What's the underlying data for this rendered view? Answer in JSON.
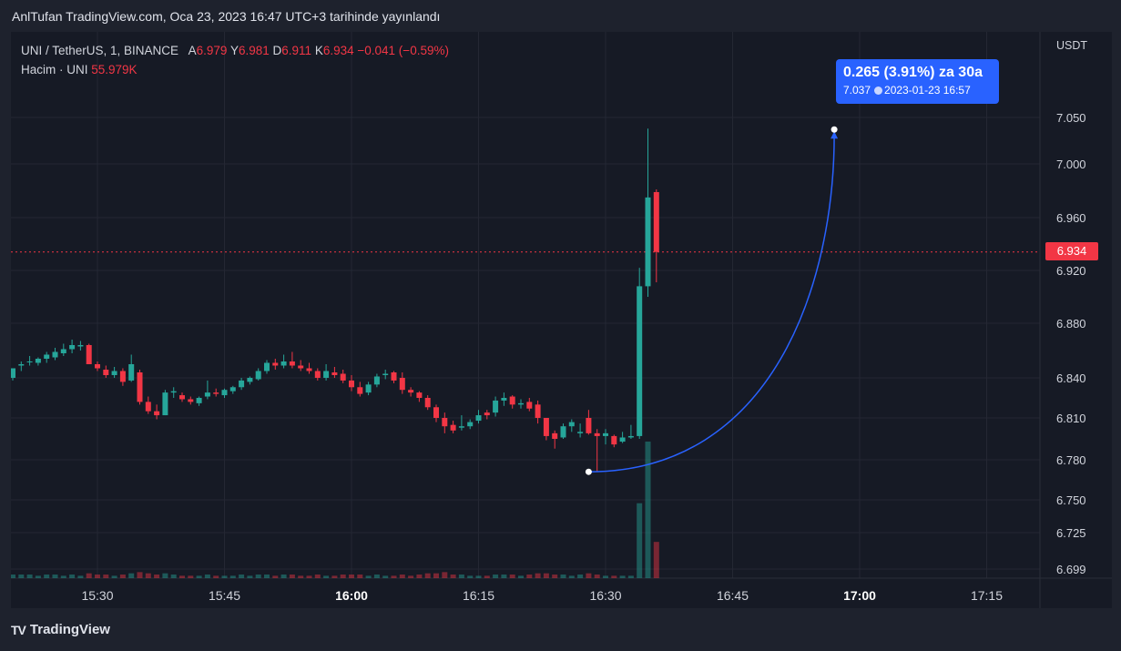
{
  "header": {
    "published": "AnlTufan TradingView.com, Oca 23, 2023 16:47 UTC+3 tarihinde yayınlandı"
  },
  "legend": {
    "symbol": "UNI / TetherUS, 1, BINANCE",
    "open_label": "A",
    "open": "6.979",
    "high_label": "Y",
    "high": "6.981",
    "low_label": "D",
    "low": "6.911",
    "close_label": "K",
    "close": "6.934",
    "change": "−0.041 (−0.59%)",
    "volume_label": "Hacim · UNI",
    "volume": "55.979K"
  },
  "axis": {
    "currency": "USDT"
  },
  "current_price": "6.934",
  "tooltip": {
    "main": "0.265 (3.91%) za 30a",
    "price": "7.037",
    "datetime": "2023-01-23  16:57"
  },
  "footer": {
    "logo_mark": "TV",
    "brand": "TradingView"
  },
  "colors": {
    "up": "#26a69a",
    "down": "#f23645",
    "accent": "#2962ff",
    "background": "#161a25"
  },
  "chart_data": {
    "type": "candlestick",
    "x_unit": "time",
    "y_ticks": [
      "7.050",
      "7.000",
      "6.960",
      "6.920",
      "6.880",
      "6.840",
      "6.810",
      "6.780",
      "6.750",
      "6.725",
      "6.699"
    ],
    "x_ticks": [
      {
        "label": "15:30",
        "bold": false
      },
      {
        "label": "15:45",
        "bold": false
      },
      {
        "label": "16:00",
        "bold": true
      },
      {
        "label": "16:15",
        "bold": false
      },
      {
        "label": "16:30",
        "bold": false
      },
      {
        "label": "16:45",
        "bold": false
      },
      {
        "label": "17:00",
        "bold": true
      },
      {
        "label": "17:15",
        "bold": false
      }
    ],
    "grid": true,
    "x_start": "15:20",
    "candles": [
      {
        "o": 6.84,
        "h": 6.847,
        "l": 6.838,
        "c": 6.847,
        "v": 3
      },
      {
        "o": 6.849,
        "h": 6.852,
        "l": 6.845,
        "c": 6.85,
        "v": 3
      },
      {
        "o": 6.852,
        "h": 6.856,
        "l": 6.849,
        "c": 6.852,
        "v": 3
      },
      {
        "o": 6.851,
        "h": 6.855,
        "l": 6.849,
        "c": 6.854,
        "v": 2
      },
      {
        "o": 6.854,
        "h": 6.859,
        "l": 6.851,
        "c": 6.857,
        "v": 3
      },
      {
        "o": 6.855,
        "h": 6.862,
        "l": 6.853,
        "c": 6.859,
        "v": 3
      },
      {
        "o": 6.858,
        "h": 6.865,
        "l": 6.856,
        "c": 6.861,
        "v": 2
      },
      {
        "o": 6.861,
        "h": 6.868,
        "l": 6.858,
        "c": 6.864,
        "v": 3
      },
      {
        "o": 6.863,
        "h": 6.867,
        "l": 6.86,
        "c": 6.864,
        "v": 2
      },
      {
        "o": 6.864,
        "h": 6.865,
        "l": 6.85,
        "c": 6.85,
        "v": 4
      },
      {
        "o": 6.85,
        "h": 6.852,
        "l": 6.845,
        "c": 6.847,
        "v": 3
      },
      {
        "o": 6.846,
        "h": 6.849,
        "l": 6.84,
        "c": 6.842,
        "v": 3
      },
      {
        "o": 6.842,
        "h": 6.848,
        "l": 6.84,
        "c": 6.845,
        "v": 2
      },
      {
        "o": 6.845,
        "h": 6.847,
        "l": 6.834,
        "c": 6.837,
        "v": 3
      },
      {
        "o": 6.838,
        "h": 6.857,
        "l": 6.837,
        "c": 6.85,
        "v": 4
      },
      {
        "o": 6.844,
        "h": 6.846,
        "l": 6.82,
        "c": 6.822,
        "v": 5
      },
      {
        "o": 6.822,
        "h": 6.826,
        "l": 6.813,
        "c": 6.815,
        "v": 4
      },
      {
        "o": 6.815,
        "h": 6.82,
        "l": 6.809,
        "c": 6.812,
        "v": 3
      },
      {
        "o": 6.812,
        "h": 6.831,
        "l": 6.812,
        "c": 6.829,
        "v": 4
      },
      {
        "o": 6.829,
        "h": 6.833,
        "l": 6.825,
        "c": 6.83,
        "v": 3
      },
      {
        "o": 6.827,
        "h": 6.829,
        "l": 6.822,
        "c": 6.824,
        "v": 2
      },
      {
        "o": 6.824,
        "h": 6.826,
        "l": 6.82,
        "c": 6.822,
        "v": 2
      },
      {
        "o": 6.821,
        "h": 6.826,
        "l": 6.819,
        "c": 6.825,
        "v": 2
      },
      {
        "o": 6.826,
        "h": 6.838,
        "l": 6.824,
        "c": 6.829,
        "v": 3
      },
      {
        "o": 6.829,
        "h": 6.832,
        "l": 6.826,
        "c": 6.828,
        "v": 2
      },
      {
        "o": 6.827,
        "h": 6.832,
        "l": 6.825,
        "c": 6.831,
        "v": 2
      },
      {
        "o": 6.83,
        "h": 6.834,
        "l": 6.828,
        "c": 6.833,
        "v": 2
      },
      {
        "o": 6.833,
        "h": 6.84,
        "l": 6.831,
        "c": 6.838,
        "v": 3
      },
      {
        "o": 6.837,
        "h": 6.841,
        "l": 6.835,
        "c": 6.84,
        "v": 2
      },
      {
        "o": 6.839,
        "h": 6.847,
        "l": 6.838,
        "c": 6.845,
        "v": 3
      },
      {
        "o": 6.845,
        "h": 6.853,
        "l": 6.843,
        "c": 6.851,
        "v": 3
      },
      {
        "o": 6.851,
        "h": 6.854,
        "l": 6.846,
        "c": 6.849,
        "v": 2
      },
      {
        "o": 6.849,
        "h": 6.857,
        "l": 6.847,
        "c": 6.852,
        "v": 3
      },
      {
        "o": 6.852,
        "h": 6.859,
        "l": 6.847,
        "c": 6.849,
        "v": 3
      },
      {
        "o": 6.849,
        "h": 6.853,
        "l": 6.845,
        "c": 6.847,
        "v": 2
      },
      {
        "o": 6.847,
        "h": 6.851,
        "l": 6.843,
        "c": 6.845,
        "v": 2
      },
      {
        "o": 6.845,
        "h": 6.847,
        "l": 6.838,
        "c": 6.84,
        "v": 3
      },
      {
        "o": 6.84,
        "h": 6.85,
        "l": 6.838,
        "c": 6.845,
        "v": 2
      },
      {
        "o": 6.844,
        "h": 6.848,
        "l": 6.84,
        "c": 6.842,
        "v": 2
      },
      {
        "o": 6.843,
        "h": 6.846,
        "l": 6.836,
        "c": 6.838,
        "v": 3
      },
      {
        "o": 6.838,
        "h": 6.842,
        "l": 6.83,
        "c": 6.833,
        "v": 3
      },
      {
        "o": 6.833,
        "h": 6.837,
        "l": 6.826,
        "c": 6.828,
        "v": 3
      },
      {
        "o": 6.829,
        "h": 6.837,
        "l": 6.827,
        "c": 6.835,
        "v": 2
      },
      {
        "o": 6.835,
        "h": 6.843,
        "l": 6.833,
        "c": 6.841,
        "v": 3
      },
      {
        "o": 6.842,
        "h": 6.846,
        "l": 6.839,
        "c": 6.843,
        "v": 2
      },
      {
        "o": 6.844,
        "h": 6.845,
        "l": 6.836,
        "c": 6.838,
        "v": 2
      },
      {
        "o": 6.84,
        "h": 6.844,
        "l": 6.828,
        "c": 6.831,
        "v": 3
      },
      {
        "o": 6.831,
        "h": 6.833,
        "l": 6.826,
        "c": 6.829,
        "v": 2
      },
      {
        "o": 6.829,
        "h": 6.83,
        "l": 6.822,
        "c": 6.825,
        "v": 3
      },
      {
        "o": 6.825,
        "h": 6.827,
        "l": 6.816,
        "c": 6.818,
        "v": 4
      },
      {
        "o": 6.818,
        "h": 6.82,
        "l": 6.807,
        "c": 6.81,
        "v": 4
      },
      {
        "o": 6.81,
        "h": 6.814,
        "l": 6.799,
        "c": 6.804,
        "v": 5
      },
      {
        "o": 6.805,
        "h": 6.808,
        "l": 6.799,
        "c": 6.801,
        "v": 3
      },
      {
        "o": 6.803,
        "h": 6.812,
        "l": 6.801,
        "c": 6.804,
        "v": 3
      },
      {
        "o": 6.804,
        "h": 6.809,
        "l": 6.802,
        "c": 6.807,
        "v": 2
      },
      {
        "o": 6.808,
        "h": 6.816,
        "l": 6.806,
        "c": 6.812,
        "v": 2
      },
      {
        "o": 6.814,
        "h": 6.816,
        "l": 6.809,
        "c": 6.812,
        "v": 2
      },
      {
        "o": 6.814,
        "h": 6.826,
        "l": 6.811,
        "c": 6.823,
        "v": 3
      },
      {
        "o": 6.823,
        "h": 6.829,
        "l": 6.819,
        "c": 6.825,
        "v": 3
      },
      {
        "o": 6.826,
        "h": 6.827,
        "l": 6.817,
        "c": 6.82,
        "v": 3
      },
      {
        "o": 6.82,
        "h": 6.824,
        "l": 6.817,
        "c": 6.821,
        "v": 2
      },
      {
        "o": 6.822,
        "h": 6.825,
        "l": 6.815,
        "c": 6.817,
        "v": 3
      },
      {
        "o": 6.82,
        "h": 6.823,
        "l": 6.806,
        "c": 6.81,
        "v": 4
      },
      {
        "o": 6.81,
        "h": 6.81,
        "l": 6.794,
        "c": 6.797,
        "v": 4
      },
      {
        "o": 6.799,
        "h": 6.801,
        "l": 6.788,
        "c": 6.795,
        "v": 3
      },
      {
        "o": 6.796,
        "h": 6.806,
        "l": 6.795,
        "c": 6.804,
        "v": 3
      },
      {
        "o": 6.804,
        "h": 6.809,
        "l": 6.8,
        "c": 6.807,
        "v": 2
      },
      {
        "o": 6.799,
        "h": 6.806,
        "l": 6.796,
        "c": 6.8,
        "v": 3
      },
      {
        "o": 6.81,
        "h": 6.816,
        "l": 6.798,
        "c": 6.799,
        "v": 4
      },
      {
        "o": 6.799,
        "h": 6.802,
        "l": 6.771,
        "c": 6.797,
        "v": 3
      },
      {
        "o": 6.797,
        "h": 6.802,
        "l": 6.791,
        "c": 6.799,
        "v": 2
      },
      {
        "o": 6.797,
        "h": 6.798,
        "l": 6.789,
        "c": 6.791,
        "v": 2
      },
      {
        "o": 6.793,
        "h": 6.8,
        "l": 6.792,
        "c": 6.796,
        "v": 2
      },
      {
        "o": 6.796,
        "h": 6.805,
        "l": 6.795,
        "c": 6.797,
        "v": 2
      },
      {
        "o": 6.797,
        "h": 6.922,
        "l": 6.795,
        "c": 6.908,
        "v": 62
      },
      {
        "o": 6.908,
        "h": 7.038,
        "l": 6.9,
        "c": 6.975,
        "v": 113
      },
      {
        "o": 6.979,
        "h": 6.981,
        "l": 6.911,
        "c": 6.934,
        "v": 30
      }
    ],
    "annotation": {
      "start": {
        "time": "16:28",
        "price": 6.771
      },
      "end": {
        "time": "16:57",
        "price": 7.037
      }
    }
  }
}
